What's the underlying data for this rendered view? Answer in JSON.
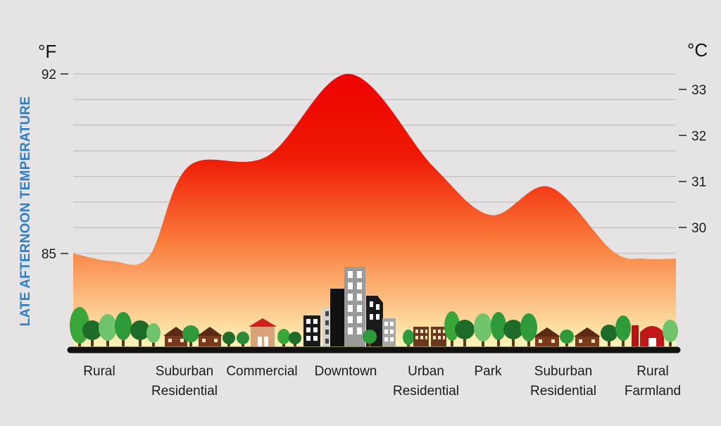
{
  "chart_data": {
    "type": "area",
    "title": "",
    "ylabel": "LATE AFTERNOON TEMPERATURE",
    "left_unit": "°F",
    "right_unit": "°C",
    "left_ticks": [
      92,
      85
    ],
    "right_ticks": [
      33,
      32,
      31,
      30
    ],
    "ylim_f": [
      81.0,
      92.0
    ],
    "grid": true,
    "colors": {
      "top": "#ee0000",
      "mid": "#f97a3a",
      "bottom": "#fff3b8",
      "axis_label": "#2f7fc4"
    },
    "categories": [
      "Rural",
      "Suburban Residential",
      "Commercial",
      "Downtown",
      "Urban Residential",
      "Park",
      "Suburban Residential",
      "Rural Farmland"
    ],
    "category_lines": [
      [
        "Rural"
      ],
      [
        "Suburban",
        "Residential"
      ],
      [
        "Commercial"
      ],
      [
        "Downtown"
      ],
      [
        "Urban",
        "Residential"
      ],
      [
        "Park"
      ],
      [
        "Suburban",
        "Residential"
      ],
      [
        "Rural",
        "Farmland"
      ]
    ],
    "values_f": [
      85.0,
      88.4,
      88.8,
      92.0,
      88.4,
      86.5,
      87.6,
      84.8
    ]
  }
}
